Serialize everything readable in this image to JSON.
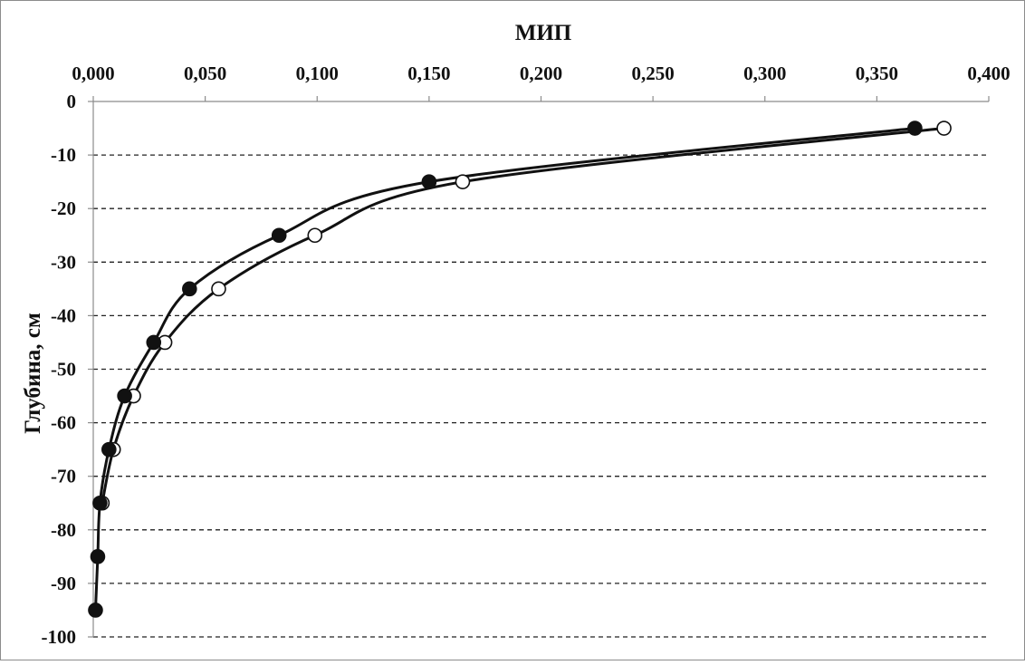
{
  "chart_data": {
    "type": "line",
    "title": "",
    "xlabel": "МИП",
    "ylabel": "Глубина, см",
    "x_axis_position": "top",
    "xlim": [
      0,
      0.4
    ],
    "ylim": [
      -100,
      0
    ],
    "x_ticks": [
      0,
      0.05,
      0.1,
      0.15,
      0.2,
      0.25,
      0.3,
      0.35,
      0.4
    ],
    "x_tick_labels": [
      "0,000",
      "0,050",
      "0,100",
      "0,150",
      "0,200",
      "0,250",
      "0,300",
      "0,350",
      "0,400"
    ],
    "y_ticks": [
      0,
      -10,
      -20,
      -30,
      -40,
      -50,
      -60,
      -70,
      -80,
      -90,
      -100
    ],
    "y_tick_labels": [
      "0",
      "-10",
      "-20",
      "-30",
      "-40",
      "-50",
      "-60",
      "-70",
      "-80",
      "-90",
      "-100"
    ],
    "grid": "horizontal dashed",
    "legend": "none",
    "series": [
      {
        "marker": "filled-circle",
        "color": "#111111",
        "points": [
          {
            "x": 0.367,
            "y": -5
          },
          {
            "x": 0.15,
            "y": -15
          },
          {
            "x": 0.083,
            "y": -25
          },
          {
            "x": 0.043,
            "y": -35
          },
          {
            "x": 0.027,
            "y": -45
          },
          {
            "x": 0.014,
            "y": -55
          },
          {
            "x": 0.007,
            "y": -65
          },
          {
            "x": 0.003,
            "y": -75
          },
          {
            "x": 0.002,
            "y": -85
          },
          {
            "x": 0.001,
            "y": -95
          }
        ]
      },
      {
        "marker": "open-circle",
        "color": "#111111",
        "points": [
          {
            "x": 0.38,
            "y": -5
          },
          {
            "x": 0.165,
            "y": -15
          },
          {
            "x": 0.099,
            "y": -25
          },
          {
            "x": 0.056,
            "y": -35
          },
          {
            "x": 0.032,
            "y": -45
          },
          {
            "x": 0.018,
            "y": -55
          },
          {
            "x": 0.009,
            "y": -65
          },
          {
            "x": 0.004,
            "y": -75
          }
        ]
      }
    ]
  }
}
